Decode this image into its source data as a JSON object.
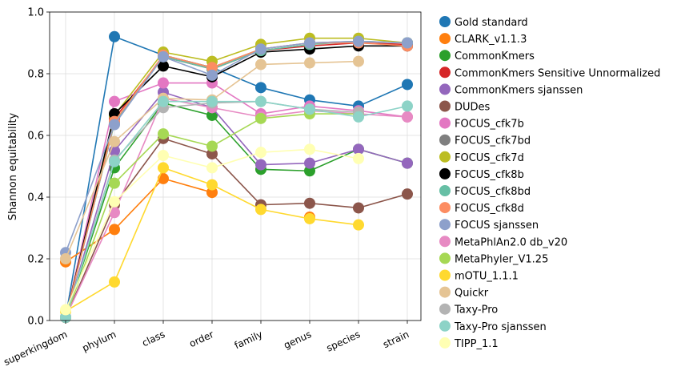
{
  "chart_data": {
    "type": "line",
    "xlabel": "",
    "ylabel": "Shannon equitability",
    "categories": [
      "superkingdom",
      "phylum",
      "class",
      "order",
      "family",
      "genus",
      "species",
      "strain"
    ],
    "ylim": [
      0.0,
      1.0
    ],
    "yticks": [
      "0.0",
      "0.2",
      "0.4",
      "0.6",
      "0.8",
      "1.0"
    ],
    "grid": true,
    "legend_position": "outside-right",
    "series": [
      {
        "name": "Gold standard",
        "color": "#1f77b4",
        "values": [
          0.01,
          0.92,
          0.86,
          0.82,
          0.755,
          0.715,
          0.695,
          0.765
        ]
      },
      {
        "name": "CLARK_v1.1.3",
        "color": "#ff7f0e",
        "values": [
          0.19,
          0.295,
          0.46,
          0.415,
          null,
          0.335,
          null,
          null
        ]
      },
      {
        "name": "CommonKmers",
        "color": "#2ca02c",
        "values": [
          0.01,
          0.495,
          0.705,
          0.665,
          0.49,
          0.485,
          0.555,
          0.51
        ]
      },
      {
        "name": "CommonKmers Sensitive Unnormalized",
        "color": "#d62728",
        "values": [
          0.01,
          0.655,
          0.855,
          0.815,
          0.875,
          0.89,
          0.9,
          0.895
        ]
      },
      {
        "name": "CommonKmers sjanssen",
        "color": "#9467bd",
        "values": [
          0.01,
          0.55,
          0.74,
          0.69,
          0.505,
          0.51,
          0.555,
          0.51
        ]
      },
      {
        "name": "DUDes",
        "color": "#8c564b",
        "values": [
          0.01,
          0.375,
          0.59,
          0.54,
          0.375,
          0.38,
          0.365,
          0.41
        ]
      },
      {
        "name": "FOCUS_cfk7b",
        "color": "#e377c2",
        "values": [
          0.01,
          0.71,
          0.77,
          0.77,
          0.67,
          0.695,
          0.68,
          0.66
        ]
      },
      {
        "name": "FOCUS_cfk7bd",
        "color": "#7f7f7f",
        "values": [
          0.01,
          0.64,
          0.86,
          0.82,
          0.88,
          0.9,
          0.905,
          0.9
        ]
      },
      {
        "name": "FOCUS_cfk7d",
        "color": "#bcbd22",
        "values": [
          0.01,
          0.665,
          0.87,
          0.84,
          0.895,
          0.915,
          0.915,
          0.9
        ]
      },
      {
        "name": "FOCUS_cfk8b",
        "color": "#000000",
        "values": [
          0.01,
          0.67,
          0.825,
          0.79,
          0.87,
          0.88,
          0.89,
          0.89
        ]
      },
      {
        "name": "FOCUS_cfk8bd",
        "color": "#66bfa5",
        "values": [
          0.01,
          0.64,
          0.855,
          0.815,
          0.875,
          0.895,
          0.905,
          0.9
        ]
      },
      {
        "name": "FOCUS_cfk8d",
        "color": "#fc8d62",
        "values": [
          0.01,
          0.645,
          0.86,
          0.82,
          0.88,
          0.9,
          0.9,
          0.89
        ]
      },
      {
        "name": "FOCUS sjanssen",
        "color": "#8da0cb",
        "values": [
          0.22,
          0.635,
          0.855,
          0.795,
          0.88,
          0.9,
          0.905,
          0.9
        ]
      },
      {
        "name": "MetaPhlAn2.0 db_v20",
        "color": "#e78ac3",
        "values": [
          0.01,
          0.35,
          0.72,
          0.69,
          0.66,
          0.68,
          0.67,
          0.66
        ]
      },
      {
        "name": "MetaPhyler_V1.25",
        "color": "#a6d854",
        "values": [
          0.01,
          0.445,
          0.605,
          0.565,
          0.655,
          0.67,
          0.67,
          null
        ]
      },
      {
        "name": "mOTU_1.1.1",
        "color": "#ffd92f",
        "values": [
          0.03,
          0.125,
          0.495,
          0.44,
          0.36,
          0.33,
          0.31,
          null
        ]
      },
      {
        "name": "Quickr",
        "color": "#e5c494",
        "values": [
          0.2,
          0.58,
          0.72,
          0.715,
          0.83,
          0.835,
          0.84,
          null
        ]
      },
      {
        "name": "Taxy-Pro",
        "color": "#b3b3b3",
        "values": [
          0.01,
          0.52,
          0.69,
          0.705,
          0.71,
          0.685,
          0.675,
          null
        ]
      },
      {
        "name": "Taxy-Pro sjanssen",
        "color": "#8dd3c7",
        "values": [
          0.01,
          0.515,
          0.71,
          0.71,
          0.71,
          0.685,
          0.66,
          0.695
        ]
      },
      {
        "name": "TIPP_1.1",
        "color": "#ffffb3",
        "values": [
          0.035,
          0.385,
          0.535,
          0.495,
          0.545,
          0.555,
          0.525,
          null
        ]
      }
    ]
  }
}
